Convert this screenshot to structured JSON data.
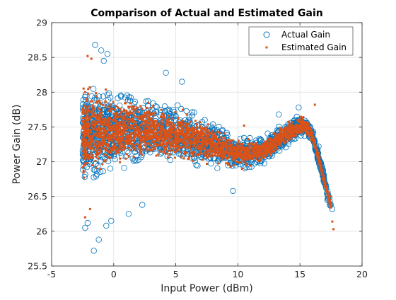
{
  "chart_data": {
    "type": "scatter",
    "title": "Comparison of Actual and Estimated Gain",
    "xlabel": "Input Power (dBm)",
    "ylabel": "Power Gain (dB)",
    "xlim": [
      -5,
      20
    ],
    "ylim": [
      25.5,
      29
    ],
    "xticks": [
      "-5",
      "0",
      "5",
      "10",
      "15",
      "20"
    ],
    "yticks": [
      "25.5",
      "26",
      "26.5",
      "27",
      "27.5",
      "28",
      "28.5",
      "29"
    ],
    "grid": true,
    "legend_position": "top-right",
    "series": [
      {
        "name": "Actual Gain",
        "marker": "open-circle",
        "color": "#0072BD",
        "trend": {
          "x": [
            -2.5,
            -2,
            -1,
            0,
            1,
            2,
            3,
            4,
            5,
            6,
            7,
            8,
            9,
            10,
            11,
            12,
            13,
            14,
            15,
            15.5,
            16,
            16.5,
            17,
            17.5
          ],
          "center": [
            27.4,
            27.4,
            27.42,
            27.44,
            27.45,
            27.45,
            27.44,
            27.42,
            27.39,
            27.35,
            27.3,
            27.25,
            27.18,
            27.13,
            27.12,
            27.17,
            27.28,
            27.42,
            27.52,
            27.5,
            27.38,
            27.05,
            26.7,
            26.35
          ],
          "spread": [
            0.9,
            0.9,
            0.78,
            0.72,
            0.66,
            0.6,
            0.56,
            0.54,
            0.5,
            0.46,
            0.42,
            0.38,
            0.34,
            0.3,
            0.28,
            0.26,
            0.24,
            0.22,
            0.2,
            0.17,
            0.15,
            0.12,
            0.1,
            0.08
          ]
        },
        "outliers": [
          [
            -1.5,
            28.68
          ],
          [
            -1.0,
            28.6
          ],
          [
            -0.5,
            28.55
          ],
          [
            -0.8,
            28.45
          ],
          [
            -1.6,
            25.72
          ],
          [
            -1.2,
            25.88
          ],
          [
            -0.6,
            26.08
          ],
          [
            -2.3,
            26.05
          ],
          [
            -2.1,
            26.12
          ],
          [
            -0.2,
            26.15
          ],
          [
            1.2,
            26.25
          ],
          [
            2.3,
            26.38
          ],
          [
            4.2,
            28.28
          ],
          [
            5.5,
            28.15
          ],
          [
            9.6,
            26.58
          ],
          [
            13.3,
            27.68
          ],
          [
            14.9,
            27.78
          ],
          [
            16.5,
            27.22
          ],
          [
            17.2,
            26.45
          ],
          [
            17.6,
            26.32
          ]
        ]
      },
      {
        "name": "Estimated Gain",
        "marker": "filled-square",
        "color": "#D95319",
        "trend": {
          "x": [
            -2.5,
            -2,
            -1,
            0,
            1,
            2,
            3,
            4,
            5,
            6,
            7,
            8,
            9,
            10,
            11,
            12,
            13,
            14,
            15,
            15.5,
            16,
            16.5,
            17,
            17.5
          ],
          "center": [
            27.4,
            27.4,
            27.42,
            27.44,
            27.45,
            27.45,
            27.44,
            27.42,
            27.39,
            27.35,
            27.3,
            27.25,
            27.18,
            27.13,
            27.12,
            27.17,
            27.28,
            27.42,
            27.52,
            27.5,
            27.38,
            27.05,
            26.7,
            26.35
          ],
          "spread": [
            0.75,
            0.75,
            0.65,
            0.6,
            0.55,
            0.5,
            0.46,
            0.44,
            0.41,
            0.38,
            0.35,
            0.31,
            0.28,
            0.25,
            0.23,
            0.21,
            0.19,
            0.18,
            0.16,
            0.14,
            0.12,
            0.1,
            0.08,
            0.06
          ]
        },
        "outliers": [
          [
            -2.1,
            28.52
          ],
          [
            -1.8,
            28.48
          ],
          [
            -2.3,
            26.2
          ],
          [
            -1.9,
            26.32
          ],
          [
            16.2,
            27.82
          ],
          [
            17.5,
            26.5
          ],
          [
            17.6,
            26.14
          ],
          [
            17.7,
            26.03
          ],
          [
            10.5,
            27.52
          ]
        ]
      }
    ]
  }
}
